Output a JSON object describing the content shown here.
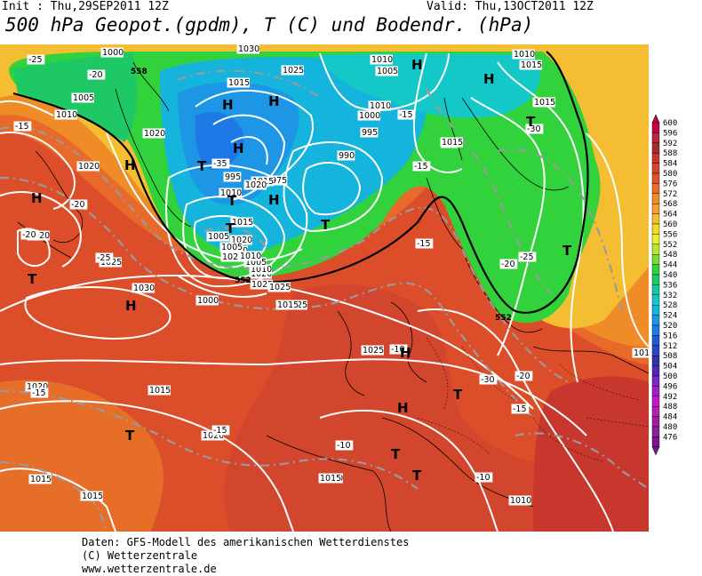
{
  "header": {
    "init": "Init : Thu,29SEP2011 12Z",
    "valid": "Valid: Thu,13OCT2011 12Z",
    "title": "500 hPa Geopot.(gpdm), T (C) und Bodendr. (hPa)"
  },
  "footer": {
    "line1": "Daten: GFS-Modell des amerikanischen Wetterdienstes",
    "line2": "(C) Wetterzentrale",
    "line3": "www.wetterzentrale.de"
  },
  "legend": {
    "values": [
      "600",
      "596",
      "592",
      "588",
      "584",
      "580",
      "576",
      "572",
      "568",
      "564",
      "560",
      "556",
      "552",
      "548",
      "544",
      "540",
      "536",
      "532",
      "528",
      "524",
      "520",
      "516",
      "512",
      "508",
      "504",
      "500",
      "496",
      "492",
      "488",
      "484",
      "480",
      "476"
    ],
    "colors": [
      "#c80046",
      "#b4283c",
      "#a02d2d",
      "#c8372d",
      "#d2462d",
      "#dc5528",
      "#e66e28",
      "#f08c28",
      "#f5a032",
      "#f5be32",
      "#f0dc28",
      "#e6f028",
      "#b4e632",
      "#78dc32",
      "#32d23c",
      "#1ec864",
      "#14c8a0",
      "#14c8c8",
      "#14b4dc",
      "#1e96e6",
      "#1e78e6",
      "#1e5ad2",
      "#2846be",
      "#3232aa",
      "#5028b4",
      "#7828c8",
      "#a01ec8",
      "#c814c8",
      "#b41eb4",
      "#a01ea0",
      "#8c1e96",
      "#78148c"
    ]
  },
  "map": {
    "pressure_labels": [
      "1000",
      "1030",
      "1025",
      "1015",
      "1005",
      "1010",
      "1020",
      "1020",
      "1020",
      "1025",
      "1030",
      "1025",
      "1025",
      "1020",
      "1015",
      "1015",
      "1015",
      "1020",
      "1010",
      "1010",
      "1010",
      "1005",
      "1010",
      "1000",
      "995",
      "990",
      "990",
      "995",
      "975",
      "1000",
      "1005",
      "1010",
      "1015",
      "1020",
      "1025",
      "1020",
      "1025",
      "1015",
      "1010",
      "1005",
      "1010",
      "1020",
      "1015",
      "1005",
      "1000",
      "1025",
      "1015",
      "1015",
      "1020",
      "1010",
      "1015",
      "1015"
    ],
    "temp_labels": [
      "-25",
      "-20",
      "-15",
      "-35",
      "-30",
      "-25",
      "-20",
      "-15",
      "-10",
      "-15",
      "-20",
      "-30",
      "-25",
      "-20",
      "-15",
      "-10",
      "-15",
      "-10",
      "-15",
      "-20",
      "-10",
      "-15"
    ],
    "geopot_labels": [
      "558",
      "552",
      "552"
    ],
    "pressure_centers": [
      "H",
      "H",
      "H",
      "H",
      "H",
      "H",
      "H",
      "H",
      "H",
      "H",
      "H",
      "T",
      "T",
      "T",
      "T",
      "T",
      "T",
      "T",
      "T",
      "T",
      "T",
      "T"
    ]
  }
}
